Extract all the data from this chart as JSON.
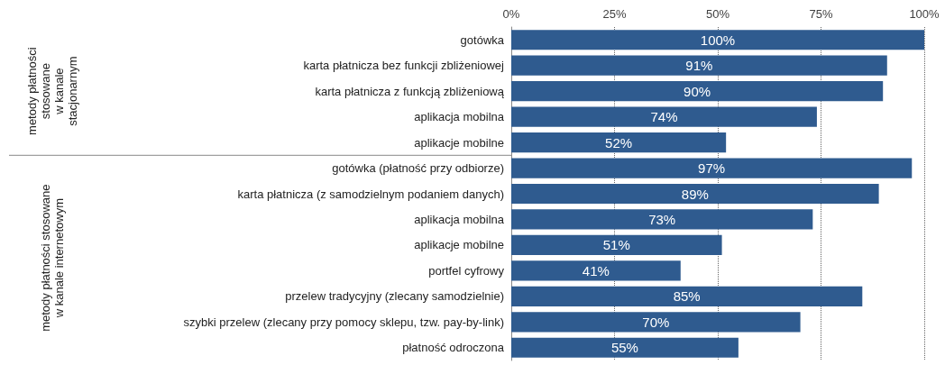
{
  "chart_data": {
    "type": "bar",
    "orientation": "horizontal",
    "categories": [
      "gotówka",
      "karta płatnicza bez funkcji zbliżeniowej",
      "karta płatnicza z funkcją zbliżeniową",
      "aplikacja mobilna",
      "aplikacje mobilne",
      "gotówka (płatność przy odbiorze)",
      "karta płatnicza (z samodzielnym podaniem danych)",
      "aplikacja mobilna",
      "aplikacje mobilne",
      "portfel cyfrowy",
      "przelew tradycyjny (zlecany samodzielnie)",
      "szybki przelew (zlecany przy pomocy sklepu, tzw. pay-by-link)",
      "płatność odroczona"
    ],
    "values": [
      100,
      91,
      90,
      74,
      52,
      97,
      89,
      73,
      51,
      41,
      85,
      70,
      55
    ],
    "value_labels": [
      "100%",
      "91%",
      "90%",
      "74%",
      "52%",
      "97%",
      "89%",
      "73%",
      "51%",
      "41%",
      "85%",
      "70%",
      "55%"
    ],
    "color": "#2f5b8f",
    "xlim": [
      0,
      100
    ],
    "xticks": [
      {
        "value": 0,
        "label": "0%"
      },
      {
        "value": 25,
        "label": "25%"
      },
      {
        "value": 50,
        "label": "50%"
      },
      {
        "value": 75,
        "label": "75%"
      },
      {
        "value": 100,
        "label": "100%"
      }
    ],
    "grid": "x",
    "line_style": "dotted",
    "annotations": [
      "metody płatności\nstosowane\nw kanale\nstacjonarnym",
      "metody płatności stosowane\nw kanale internetowym"
    ]
  }
}
